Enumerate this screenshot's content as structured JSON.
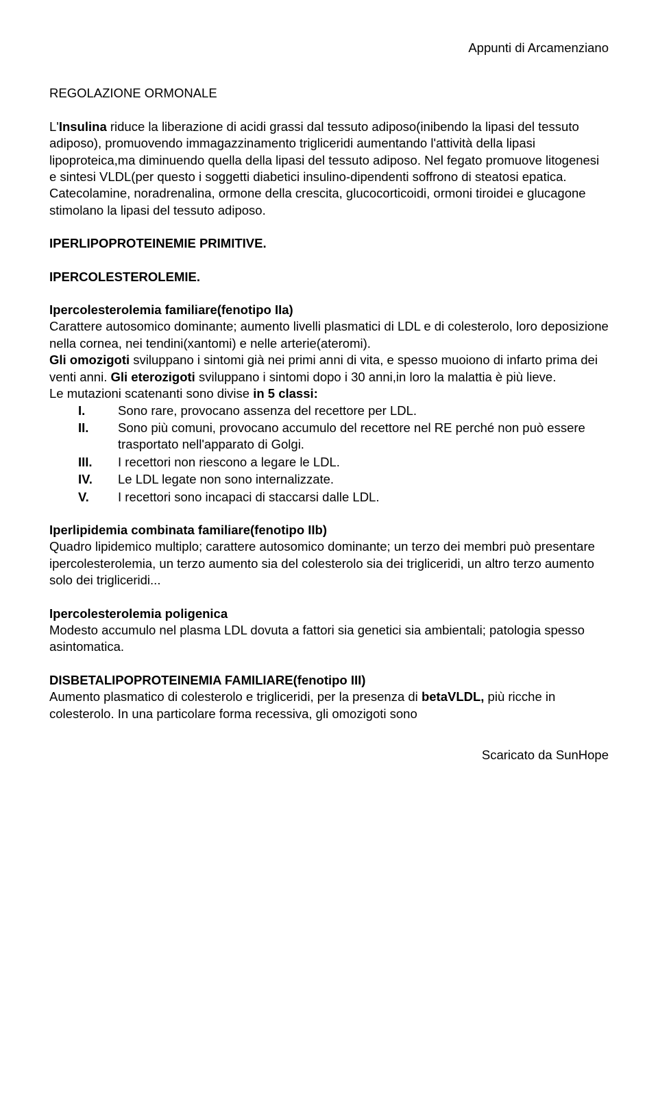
{
  "header_note": "Appunti di Arcamenziano",
  "title_1": "REGOLAZIONE ORMONALE",
  "para_1a": "L'",
  "para_1b": "Insulina",
  "para_1c": " riduce la liberazione di acidi grassi dal tessuto adiposo(inibendo la lipasi del tessuto adiposo), promuovendo immagazzinamento trigliceridi aumentando l'attività della lipasi lipoproteica,ma diminuendo quella della lipasi del tessuto adiposo.",
  "para_2": "Nel fegato promuove litogenesi e sintesi VLDL(per questo i soggetti diabetici insulino-dipendenti soffrono di steatosi epatica.",
  "para_3": "Catecolamine, noradrenalina, ormone della crescita, glucocorticoidi, ormoni tiroidei e glucagone stimolano la lipasi del tessuto adiposo.",
  "title_2": "IPERLIPOPROTEINEMIE PRIMITIVE.",
  "title_3": "IPERCOLESTEROLEMIE.",
  "sub_1": "Ipercolesterolemia familiare(fenotipo IIa)",
  "para_4": "Carattere autosomico dominante; aumento livelli plasmatici di LDL e di colesterolo, loro deposizione nella cornea, nei tendini(xantomi) e nelle arterie(ateromi).",
  "para_5a": "Gli omozigoti",
  "para_5b": " sviluppano i sintomi già nei primi anni di vita, e spesso muoiono di infarto prima dei venti anni. ",
  "para_5c": "Gli eterozigoti",
  "para_5d": " sviluppano i sintomi dopo i 30 anni,in loro la malattia è più lieve.",
  "para_6a": "Le mutazioni scatenanti sono divise ",
  "para_6b": "in 5 classi:",
  "list_items": [
    {
      "marker": "I.",
      "text": "Sono rare, provocano assenza del recettore per LDL."
    },
    {
      "marker": "II.",
      "text": "Sono più comuni, provocano accumulo del recettore nel RE perché non può essere trasportato nell'apparato di Golgi."
    },
    {
      "marker": "III.",
      "text": "I recettori non riescono a legare le LDL."
    },
    {
      "marker": "IV.",
      "text": "Le LDL legate non sono internalizzate."
    },
    {
      "marker": "V.",
      "text": "I recettori sono incapaci di staccarsi dalle LDL."
    }
  ],
  "sub_2": "Iperlipidemia combinata familiare(fenotipo IIb)",
  "para_7": "Quadro lipidemico multiplo; carattere autosomico dominante; un terzo dei membri può presentare ipercolesterolemia, un terzo aumento sia del colesterolo sia dei trigliceridi, un altro terzo aumento solo dei trigliceridi...",
  "sub_3": "Ipercolesterolemia poligenica",
  "para_8": "Modesto accumulo nel plasma LDL dovuta a fattori sia genetici sia ambientali; patologia spesso asintomatica.",
  "title_4": "DISBETALIPOPROTEINEMIA FAMILIARE(fenotipo III)",
  "para_9a": "Aumento plasmatico di colesterolo e trigliceridi, per la presenza di ",
  "para_9b": "betaVLDL,",
  "para_9c": "  più ricche in colesterolo. In una particolare forma recessiva, gli omozigoti sono",
  "footer_note": "Scaricato da SunHope"
}
